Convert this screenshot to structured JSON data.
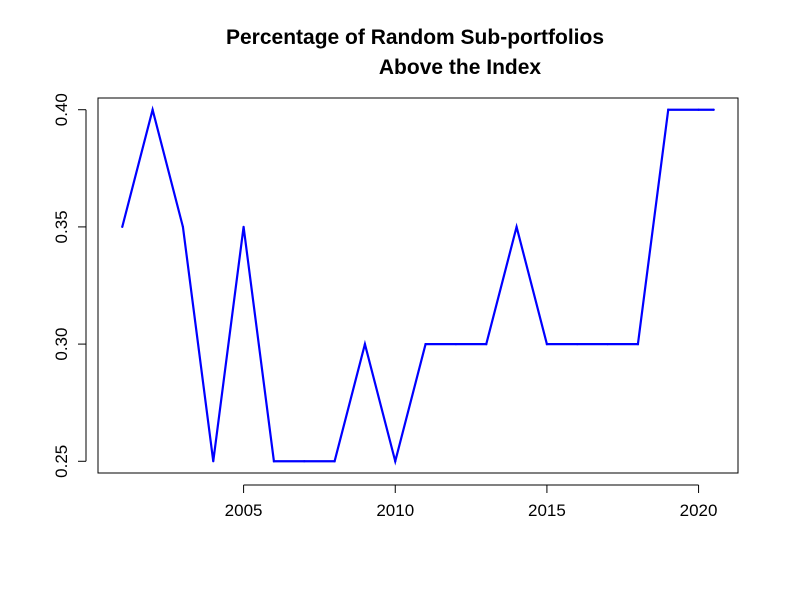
{
  "chart_data": {
    "type": "line",
    "title_lines": [
      "Percentage of Random Sub-portfolios",
      "Above the Index"
    ],
    "xlabel": "",
    "ylabel": "",
    "x": [
      2001,
      2002,
      2003,
      2004,
      2005,
      2006,
      2007,
      2008,
      2009,
      2010,
      2011,
      2012,
      2013,
      2014,
      2015,
      2016,
      2017,
      2018,
      2019,
      2020,
      2020.5
    ],
    "series": [
      {
        "values": [
          0.35,
          0.4,
          0.35,
          0.25,
          0.35,
          0.25,
          0.25,
          0.25,
          0.3,
          0.25,
          0.3,
          0.3,
          0.3,
          0.35,
          0.3,
          0.3,
          0.3,
          0.3,
          0.4,
          0.4,
          0.4
        ],
        "color": "#0000ff"
      }
    ],
    "xlim": [
      2000.2,
      2021.3
    ],
    "ylim": [
      0.245,
      0.405
    ],
    "xticks": [
      2005,
      2010,
      2015,
      2020
    ],
    "xtick_labels": [
      "2005",
      "2010",
      "2015",
      "2020"
    ],
    "yticks": [
      0.25,
      0.3,
      0.35,
      0.4
    ],
    "ytick_labels": [
      "0.25",
      "0.30",
      "0.35",
      "0.40"
    ],
    "grid": false,
    "legend": "none"
  }
}
